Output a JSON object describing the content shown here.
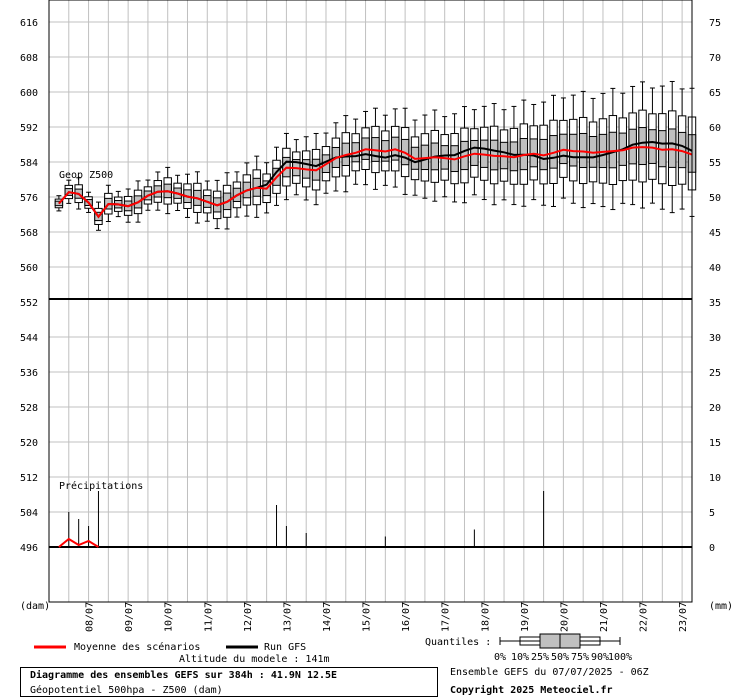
{
  "chart_data": {
    "type": "box",
    "panels": [
      {
        "name": "Geop Z500",
        "label": "Geop Z500",
        "left_axis": {
          "ticks": [
            616,
            608,
            600,
            592,
            584,
            576,
            568,
            560,
            552
          ]
        },
        "right_axis": {
          "ticks": [
            75,
            70,
            65,
            60,
            55,
            50,
            45,
            40,
            35
          ]
        },
        "x_hours": [
          0,
          6,
          12,
          18,
          24,
          30,
          36,
          42,
          48,
          54,
          60,
          66,
          72,
          78,
          84,
          90,
          96,
          102,
          108,
          114,
          120,
          126,
          132,
          138,
          144,
          150,
          156,
          162,
          168,
          174,
          180,
          186,
          192,
          198,
          204,
          210,
          216,
          222,
          228,
          234,
          240,
          246,
          252,
          258,
          264,
          270,
          276,
          282,
          288,
          294,
          300,
          306,
          312,
          318,
          324,
          330,
          336,
          342,
          348,
          354,
          360,
          366,
          372,
          378,
          384
        ],
        "mean": [
          574.5,
          577.1,
          576.7,
          574.7,
          571.5,
          574.4,
          574.3,
          573.9,
          574.8,
          576.3,
          577.2,
          577.3,
          576.8,
          576.1,
          575.7,
          574.9,
          574.1,
          574.9,
          576.4,
          577.5,
          578.1,
          577.9,
          580.5,
          582.7,
          582.6,
          582.3,
          582.1,
          583.5,
          584.9,
          585.6,
          586.1,
          586.9,
          586.7,
          586.4,
          586.9,
          586.1,
          584.7,
          584.9,
          585.1,
          584.9,
          584.6,
          585.3,
          585.9,
          585.7,
          585.4,
          585.3,
          585.1,
          585.6,
          585.9,
          585.5,
          586.1,
          586.8,
          586.5,
          586.4,
          586.1,
          586.3,
          586.5,
          586.7,
          587.3,
          587.4,
          587.3,
          586.8,
          586.9,
          586.5,
          585.7
        ],
        "run_gfs": [
          574.5,
          577.1,
          576.7,
          574.7,
          571.5,
          574.4,
          574.3,
          573.9,
          574.8,
          576.3,
          577.2,
          577.3,
          576.8,
          576.1,
          575.7,
          574.9,
          574.1,
          574.9,
          576.4,
          577.5,
          578.1,
          577.9,
          580.5,
          582.7,
          582.6,
          582.3,
          582.1,
          583.5,
          584.9,
          585.6,
          586.1,
          586.9,
          586.7,
          586.4,
          586.9,
          586.1,
          584.7,
          584.9,
          585.1,
          584.9,
          584.6,
          585.3,
          585.9,
          585.7,
          585.4,
          585.3,
          585.1,
          585.6,
          585.9,
          585.5,
          586.1,
          586.8,
          586.5,
          586.4,
          586.1,
          586.3,
          586.5,
          586.7,
          587.3,
          587.4,
          587.3,
          586.8,
          586.9,
          586.5,
          585.7
        ]
      },
      {
        "name": "Précipitations",
        "label": "Précipitations",
        "left_axis": {
          "ticks": [
            544,
            536,
            528,
            520,
            512,
            504,
            496
          ]
        },
        "right_axis": {
          "ticks": [
            30,
            25,
            20,
            15,
            10,
            5,
            0
          ]
        },
        "y_units_left": "(dam)",
        "y_units_right": "(mm)"
      }
    ],
    "x_tick_labels": [
      "08/07",
      "09/07",
      "10/07",
      "11/07",
      "12/07",
      "13/07",
      "14/07",
      "15/07",
      "16/07",
      "17/07",
      "18/07",
      "19/07",
      "20/07",
      "21/07",
      "22/07",
      "23/07"
    ],
    "x_unit_label": "(dam)",
    "right_unit_label": "(mm)",
    "legend": {
      "mean_label": "Moyenne des scénarios",
      "run_label": "Run GFS",
      "mean_color": "#ff0000",
      "run_color": "#000000",
      "quantiles_label": "Quantiles :",
      "quantile_values": [
        "0%",
        "10%",
        "25%",
        "50%",
        "75%",
        "90%",
        "100%"
      ]
    },
    "colors": {
      "box_fill": "#c0c0c0",
      "grid": "#c0c0c0"
    }
  },
  "footer": {
    "altitude": "Altitude du modele : 141m",
    "title": "Diagramme des ensembles GEFS sur 384h : 41.9N 12.5E",
    "subtitle": "Géopotentiel 500hpa - Z500 (dam)",
    "ensemble": "Ensemble GEFS du 07/07/2025 - 06Z",
    "copyright": "Copyright 2025 Meteociel.fr"
  }
}
